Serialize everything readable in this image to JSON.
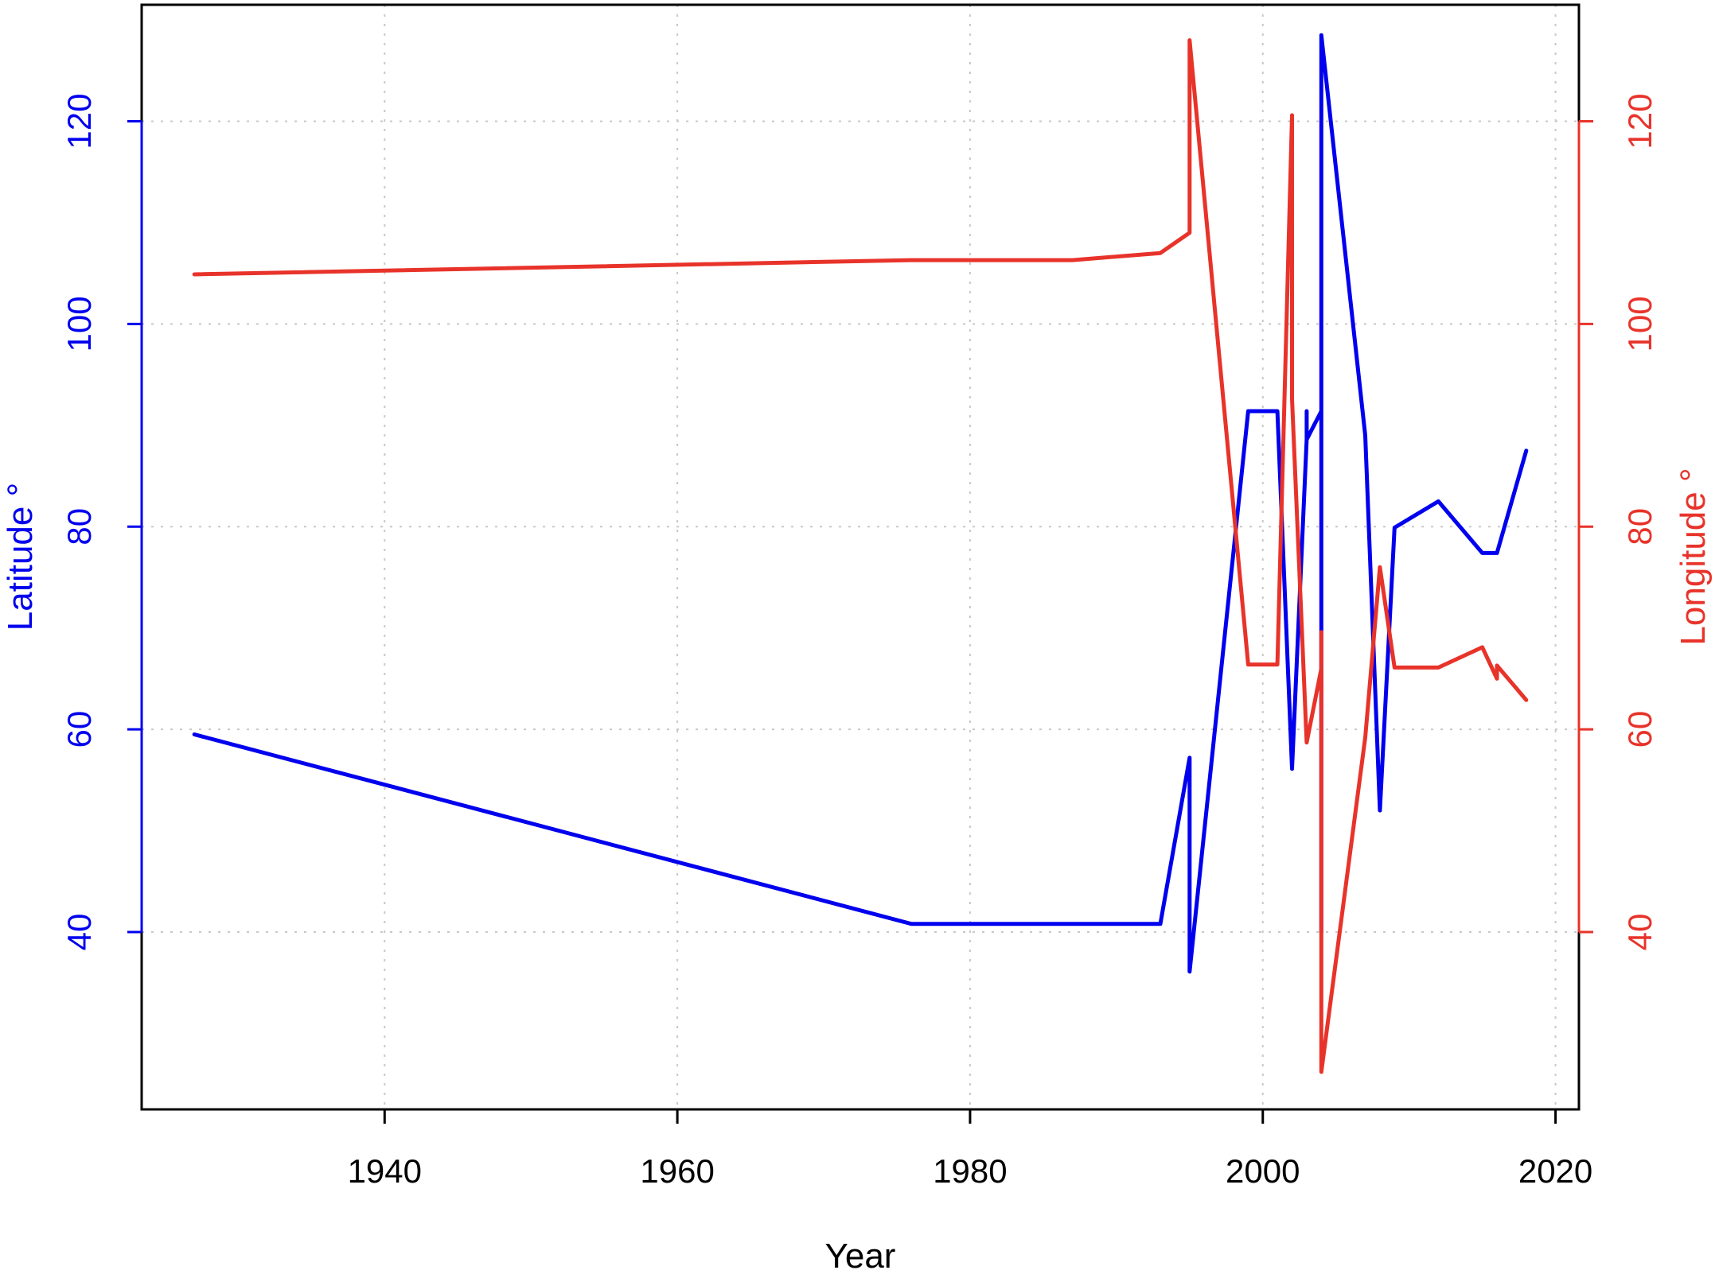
{
  "chart_data": {
    "type": "line",
    "xlabel": "Year",
    "x_ticks": [
      1940,
      1960,
      1980,
      2000,
      2020
    ],
    "xlim": [
      1923.4,
      2021.6
    ],
    "grid": true,
    "legend": "none",
    "left_axis": {
      "label": "Latitude °",
      "color": "#0000ee",
      "ticks": [
        40,
        60,
        80,
        100,
        120
      ],
      "lim": [
        22.5,
        131.5
      ]
    },
    "right_axis": {
      "label": "Longitude °",
      "color": "#e8332a",
      "ticks": [
        40,
        60,
        80,
        100,
        120
      ],
      "lim": [
        22.5,
        131.5
      ]
    },
    "series": [
      {
        "axis": "left",
        "color": "#0000ee",
        "points": [
          [
            1927,
            59.5
          ],
          [
            1976,
            40.8
          ],
          [
            1987,
            40.8
          ],
          [
            1993,
            40.8
          ],
          [
            1995,
            57.2
          ],
          [
            1995,
            36.1
          ],
          [
            1999,
            91.4
          ],
          [
            2001,
            91.4
          ],
          [
            2002,
            56.1
          ],
          [
            2003,
            88.6
          ],
          [
            2003,
            91.4
          ],
          [
            2003,
            88.6
          ],
          [
            2004,
            91.4
          ],
          [
            2004,
            40.0
          ],
          [
            2004,
            128.5
          ],
          [
            2007,
            89.0
          ],
          [
            2008,
            52.0
          ],
          [
            2009,
            79.9
          ],
          [
            2012,
            82.5
          ],
          [
            2015,
            77.4
          ],
          [
            2016,
            77.4
          ],
          [
            2018,
            87.5
          ]
        ]
      },
      {
        "axis": "right",
        "color": "#e8332a",
        "points": [
          [
            1927,
            104.9
          ],
          [
            1976,
            106.3
          ],
          [
            1987,
            106.3
          ],
          [
            1993,
            107.0
          ],
          [
            1995,
            109.0
          ],
          [
            1995,
            128.0
          ],
          [
            1999,
            66.4
          ],
          [
            2001,
            66.4
          ],
          [
            2002,
            120.6
          ],
          [
            2002,
            92.6
          ],
          [
            2003,
            58.7
          ],
          [
            2004,
            66.0
          ],
          [
            2004,
            69.6
          ],
          [
            2004,
            26.2
          ],
          [
            2007,
            59.2
          ],
          [
            2008,
            76.0
          ],
          [
            2009,
            66.1
          ],
          [
            2012,
            66.1
          ],
          [
            2015,
            68.1
          ],
          [
            2016,
            65.0
          ],
          [
            2016,
            66.3
          ],
          [
            2018,
            62.9
          ]
        ]
      }
    ]
  }
}
